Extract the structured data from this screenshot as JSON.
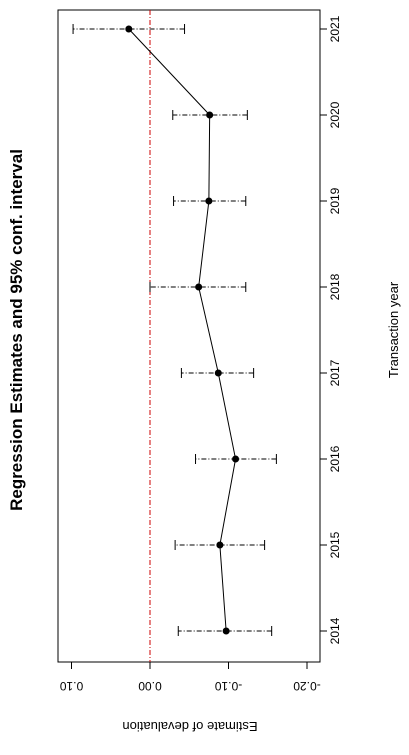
{
  "chart_data": {
    "type": "scatter",
    "title": "Regression Estimates and 95% conf. interval",
    "xlabel": "Transaction year",
    "ylabel": "Estimate of devaluation",
    "x_ticks": [
      "2014",
      "2015",
      "2016",
      "2017",
      "2018",
      "2019",
      "2020",
      "2021"
    ],
    "y_ticks": [
      "0.10",
      "0.00",
      "-0.10",
      "-0.20"
    ],
    "y_range": [
      0.105,
      -0.205
    ],
    "reference_line": {
      "value": 0.0,
      "color": "#cc0000",
      "style": "dashed"
    },
    "points": [
      {
        "x": "2014",
        "estimate": -0.097,
        "lower": -0.155,
        "upper": -0.036
      },
      {
        "x": "2015",
        "estimate": -0.089,
        "lower": -0.146,
        "upper": -0.032
      },
      {
        "x": "2016",
        "estimate": -0.109,
        "lower": -0.161,
        "upper": -0.058
      },
      {
        "x": "2017",
        "estimate": -0.087,
        "lower": -0.132,
        "upper": -0.04
      },
      {
        "x": "2018",
        "estimate": -0.062,
        "lower": -0.122,
        "upper": 0.0
      },
      {
        "x": "2019",
        "estimate": -0.075,
        "lower": -0.122,
        "upper": -0.03
      },
      {
        "x": "2020",
        "estimate": -0.076,
        "lower": -0.124,
        "upper": -0.029
      },
      {
        "x": "2021",
        "estimate": 0.027,
        "lower": -0.044,
        "upper": 0.098
      }
    ]
  }
}
